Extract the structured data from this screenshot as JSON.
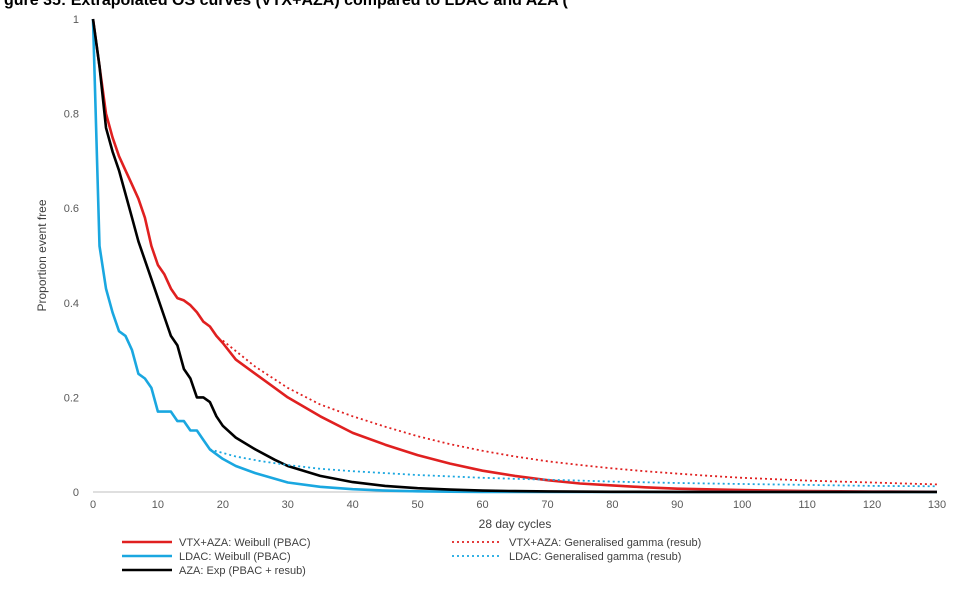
{
  "chart_data": {
    "type": "line",
    "title": "gure 35: Extrapolated OS curves (VTX+AZA) compared to LDAC and AZA (",
    "xlabel": "28 day cycles",
    "ylabel": "Proportion event free",
    "xlim": [
      0,
      130
    ],
    "ylim": [
      0,
      1
    ],
    "xticks": [
      0,
      10,
      20,
      30,
      40,
      50,
      60,
      70,
      80,
      90,
      100,
      110,
      120,
      130
    ],
    "yticks": [
      0,
      0.2,
      0.4,
      0.6,
      0.8,
      1
    ],
    "ytick_labels": [
      "0",
      "0.2",
      "0.4",
      "0.6",
      "0.8",
      "1"
    ],
    "grid": false,
    "legend_position": "bottom",
    "series": [
      {
        "name": "VTX+AZA: Weibull (PBAC)",
        "color": "#e02020",
        "dash": "solid",
        "x": [
          0,
          1,
          2,
          3,
          4,
          5,
          6,
          7,
          8,
          9,
          10,
          11,
          12,
          13,
          14,
          15,
          16,
          17,
          18,
          19,
          20,
          22,
          25,
          28,
          30,
          35,
          40,
          45,
          50,
          55,
          60,
          65,
          70,
          75,
          80,
          85,
          90,
          100,
          110,
          120,
          130
        ],
        "y": [
          1,
          0.9,
          0.8,
          0.75,
          0.71,
          0.68,
          0.65,
          0.62,
          0.58,
          0.52,
          0.48,
          0.46,
          0.43,
          0.41,
          0.405,
          0.395,
          0.38,
          0.36,
          0.35,
          0.33,
          0.315,
          0.28,
          0.25,
          0.22,
          0.2,
          0.16,
          0.125,
          0.1,
          0.078,
          0.06,
          0.045,
          0.034,
          0.025,
          0.018,
          0.014,
          0.01,
          0.007,
          0.004,
          0.002,
          0.001,
          0.0005
        ]
      },
      {
        "name": "LDAC: Weibull (PBAC)",
        "color": "#1aa7e0",
        "dash": "solid",
        "x": [
          0,
          1,
          2,
          3,
          4,
          5,
          6,
          7,
          8,
          9,
          10,
          11,
          12,
          13,
          14,
          15,
          16,
          17,
          18,
          20,
          22,
          25,
          28,
          30,
          35,
          40,
          45,
          50,
          55,
          60,
          70,
          80,
          100,
          130
        ],
        "y": [
          1,
          0.52,
          0.43,
          0.38,
          0.34,
          0.33,
          0.3,
          0.25,
          0.24,
          0.22,
          0.17,
          0.17,
          0.17,
          0.15,
          0.15,
          0.13,
          0.13,
          0.11,
          0.09,
          0.07,
          0.055,
          0.04,
          0.028,
          0.02,
          0.011,
          0.006,
          0.003,
          0.0015,
          0.0007,
          0.0003,
          0.0001,
          0,
          0,
          0
        ]
      },
      {
        "name": "AZA: Exp (PBAC + resub)",
        "color": "#000000",
        "dash": "solid",
        "x": [
          0,
          1,
          2,
          3,
          4,
          5,
          6,
          7,
          8,
          9,
          10,
          11,
          12,
          13,
          14,
          15,
          16,
          17,
          18,
          19,
          20,
          22,
          25,
          28,
          30,
          35,
          40,
          45,
          50,
          55,
          60,
          65,
          70,
          80,
          90,
          100,
          130
        ],
        "y": [
          1,
          0.9,
          0.77,
          0.72,
          0.68,
          0.63,
          0.58,
          0.53,
          0.49,
          0.45,
          0.41,
          0.37,
          0.33,
          0.31,
          0.26,
          0.24,
          0.2,
          0.2,
          0.19,
          0.16,
          0.14,
          0.115,
          0.09,
          0.068,
          0.055,
          0.034,
          0.021,
          0.013,
          0.008,
          0.005,
          0.003,
          0.002,
          0.0012,
          0.0005,
          0.0002,
          0.0001,
          0
        ]
      },
      {
        "name": "VTX+AZA: Generalised gamma (resub)",
        "color": "#e02020",
        "dash": "dotted",
        "x": [
          20,
          25,
          30,
          35,
          40,
          45,
          50,
          55,
          60,
          65,
          70,
          75,
          80,
          85,
          90,
          95,
          100,
          105,
          110,
          115,
          120,
          125,
          130
        ],
        "y": [
          0.32,
          0.265,
          0.22,
          0.185,
          0.16,
          0.138,
          0.118,
          0.101,
          0.087,
          0.075,
          0.065,
          0.057,
          0.05,
          0.044,
          0.039,
          0.034,
          0.03,
          0.027,
          0.024,
          0.022,
          0.02,
          0.018,
          0.016
        ]
      },
      {
        "name": "LDAC: Generalised gamma (resub)",
        "color": "#1aa7e0",
        "dash": "dotted",
        "x": [
          18,
          22,
          26,
          30,
          35,
          40,
          45,
          50,
          55,
          60,
          65,
          70,
          75,
          80,
          90,
          100,
          110,
          120,
          130
        ],
        "y": [
          0.09,
          0.075,
          0.065,
          0.057,
          0.049,
          0.044,
          0.04,
          0.036,
          0.033,
          0.03,
          0.028,
          0.026,
          0.024,
          0.022,
          0.019,
          0.017,
          0.015,
          0.013,
          0.012
        ]
      }
    ]
  }
}
